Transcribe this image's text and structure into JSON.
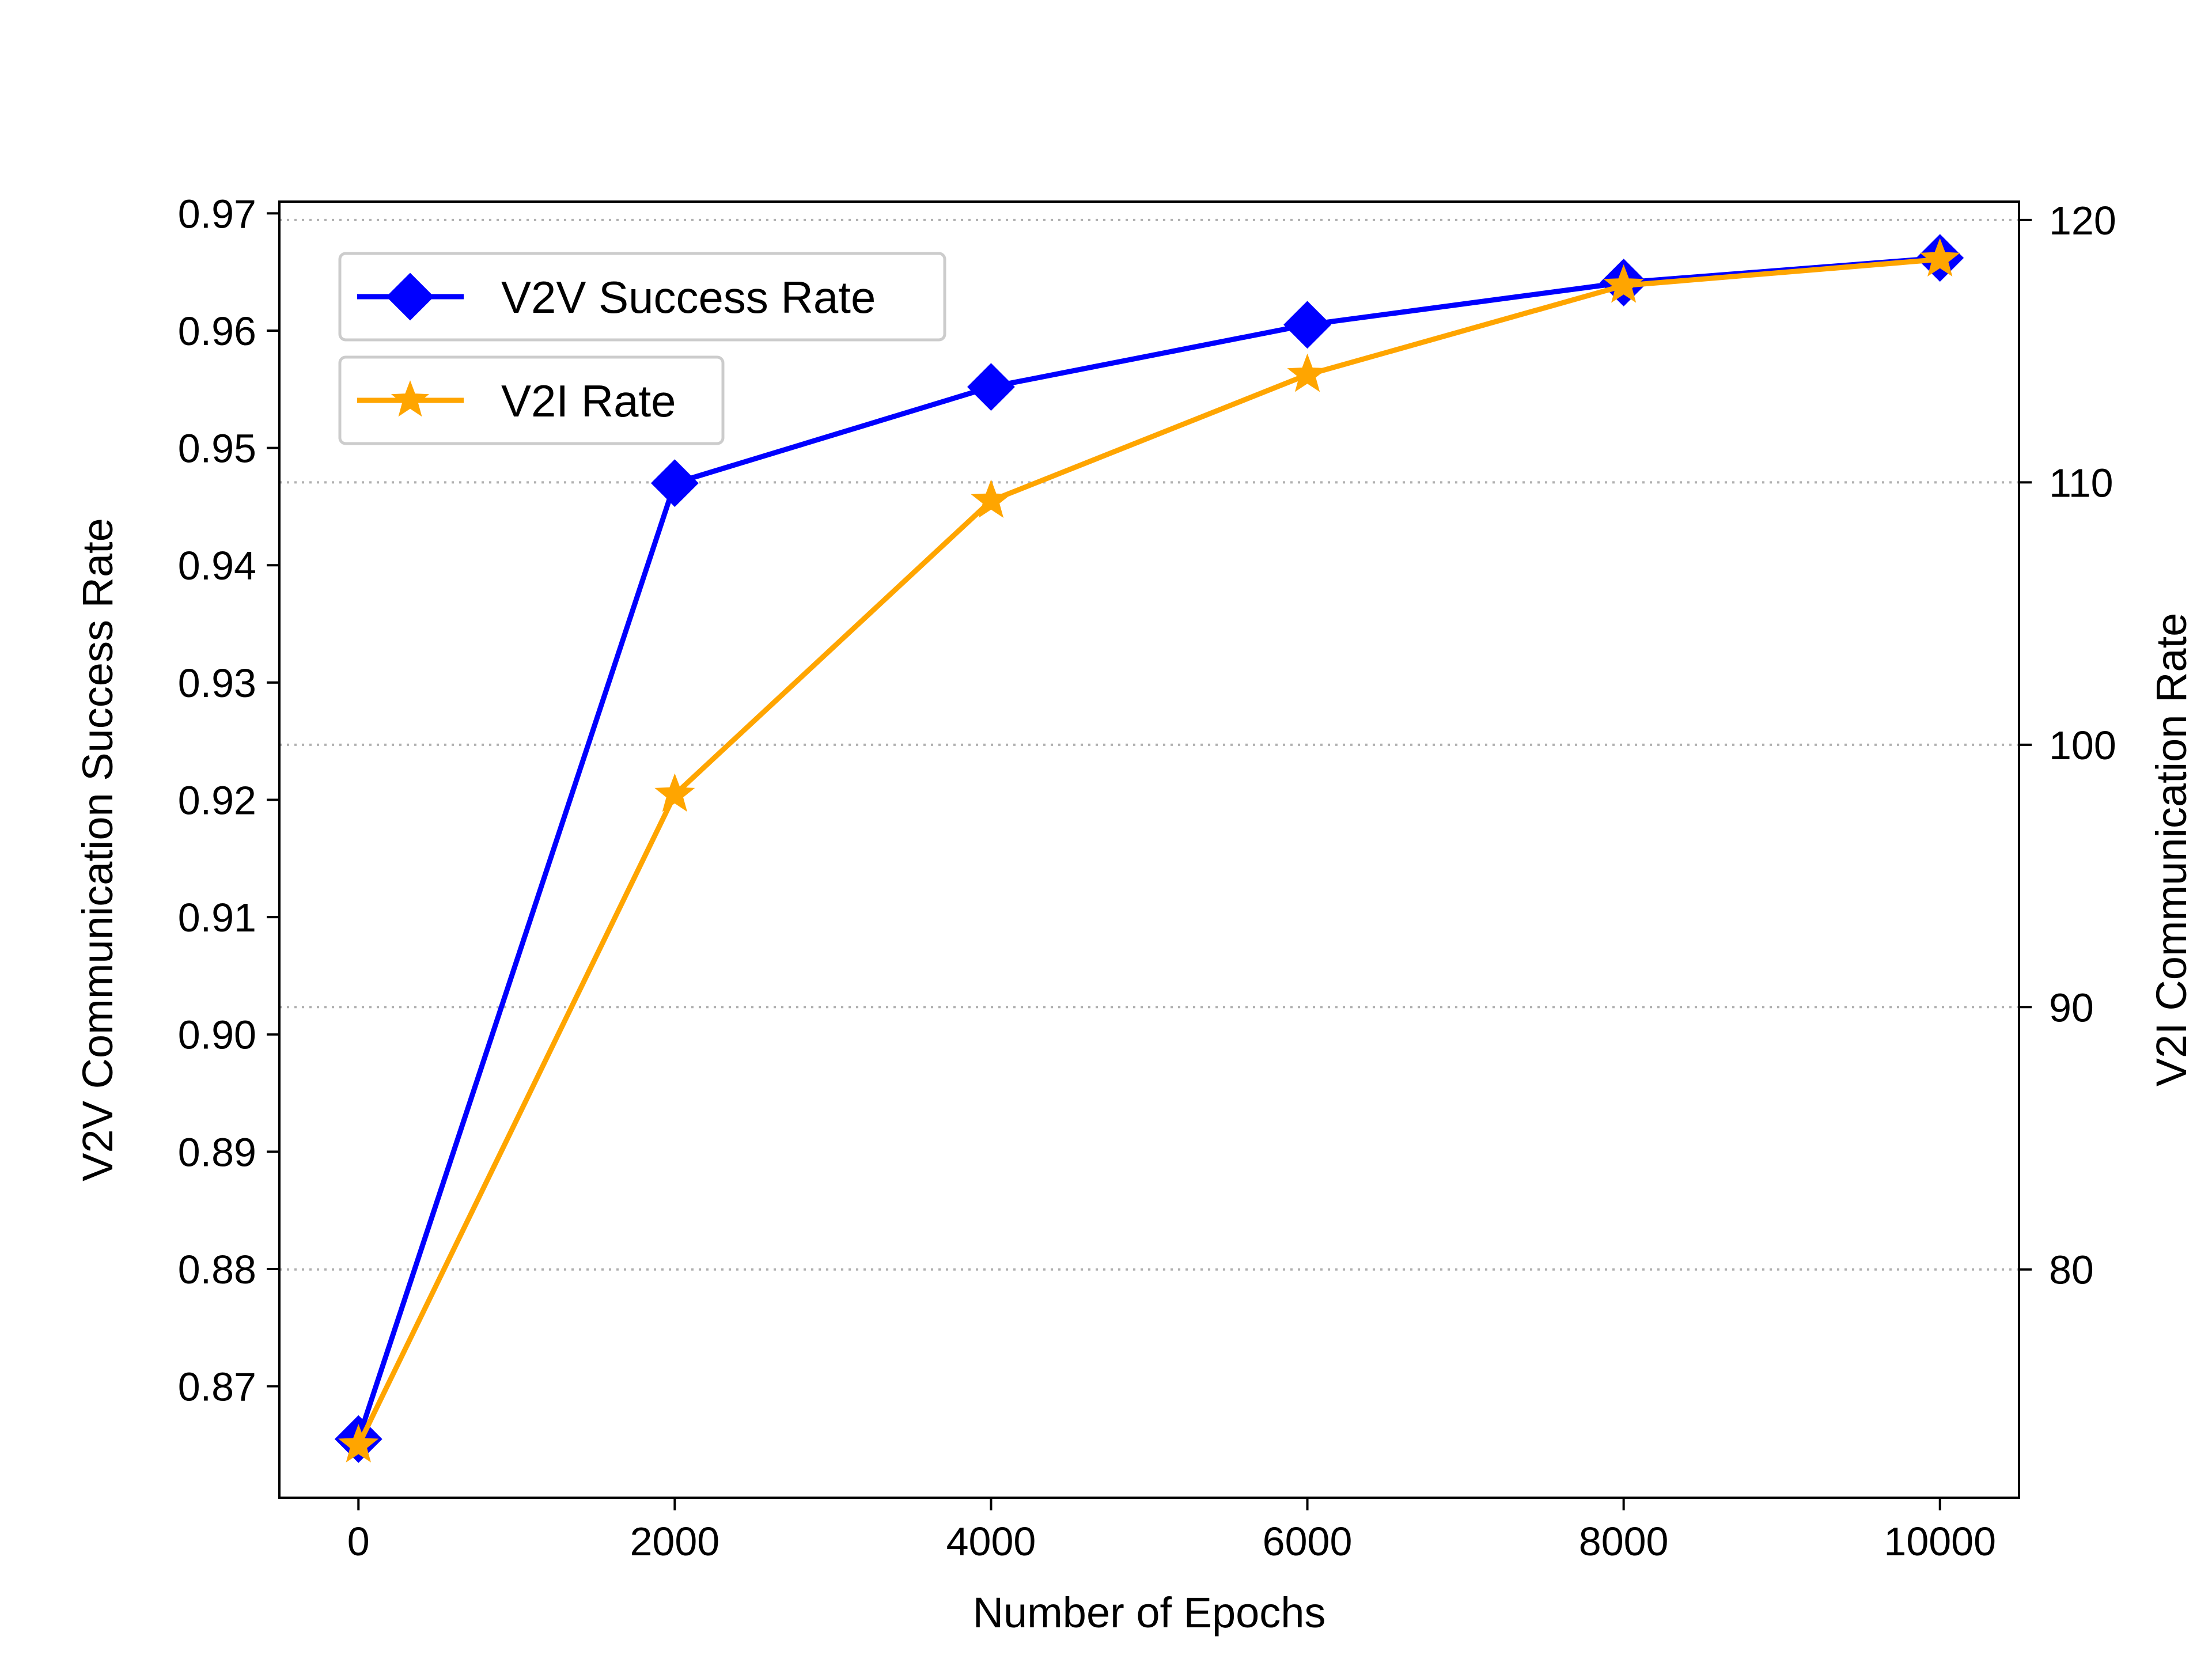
{
  "chart_data": {
    "type": "line",
    "xlabel": "Number of Epochs",
    "ylabel_left": "V2V Communication Success Rate",
    "ylabel_right": "V2I Communication Rate",
    "x": [
      0,
      2000,
      4000,
      6000,
      8000,
      10000
    ],
    "x_ticks": [
      "0",
      "2000",
      "4000",
      "6000",
      "8000",
      "10000"
    ],
    "xlim": [
      -500,
      10500
    ],
    "y_left_ticks": [
      "0.87",
      "0.88",
      "0.89",
      "0.90",
      "0.91",
      "0.92",
      "0.93",
      "0.94",
      "0.95",
      "0.96",
      "0.97"
    ],
    "ylim_left": [
      0.8605,
      0.971
    ],
    "y_right_ticks": [
      "80",
      "90",
      "100",
      "110",
      "120"
    ],
    "ylim_right": [
      71.3,
      120.7
    ],
    "grid": "right-axis horizontal dotted",
    "legend_placement": "top-left",
    "series": [
      {
        "name": "V2V Success Rate",
        "axis": "left",
        "color": "#0000ff",
        "marker": "diamond",
        "values": [
          0.8655,
          0.947,
          0.9552,
          0.9605,
          0.9641,
          0.9662
        ]
      },
      {
        "name": "V2I Rate",
        "axis": "right",
        "color": "#ffa500",
        "marker": "star",
        "values": [
          73.3,
          98.1,
          109.3,
          114.1,
          117.5,
          118.5
        ]
      }
    ]
  }
}
